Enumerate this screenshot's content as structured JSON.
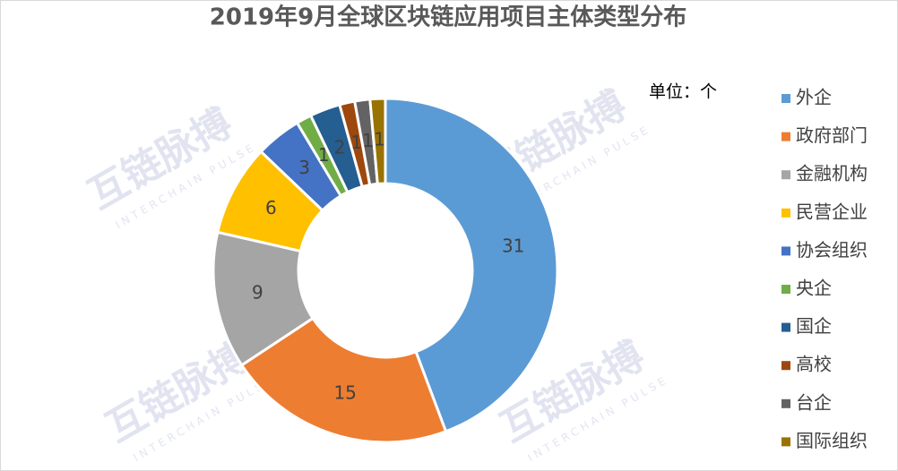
{
  "chart_data": {
    "type": "donut",
    "title": "2019年9月全球区块链应用项目主体类型分布",
    "annotation": "单位：个",
    "watermark": [
      "互链脉搏",
      "INTERCHAIN PULSE"
    ],
    "categories": [
      "外企",
      "政府部门",
      "金融机构",
      "民营企业",
      "协会组织",
      "央企",
      "国企",
      "高校",
      "台企",
      "国际组织"
    ],
    "values": [
      31,
      15,
      9,
      6,
      3,
      1,
      2,
      1,
      1,
      1
    ],
    "colors": [
      "#5b9bd5",
      "#ed7d31",
      "#a5a5a5",
      "#ffc000",
      "#4472c4",
      "#70ad47",
      "#255e91",
      "#9e480e",
      "#636363",
      "#997300"
    ],
    "legend": "right"
  }
}
